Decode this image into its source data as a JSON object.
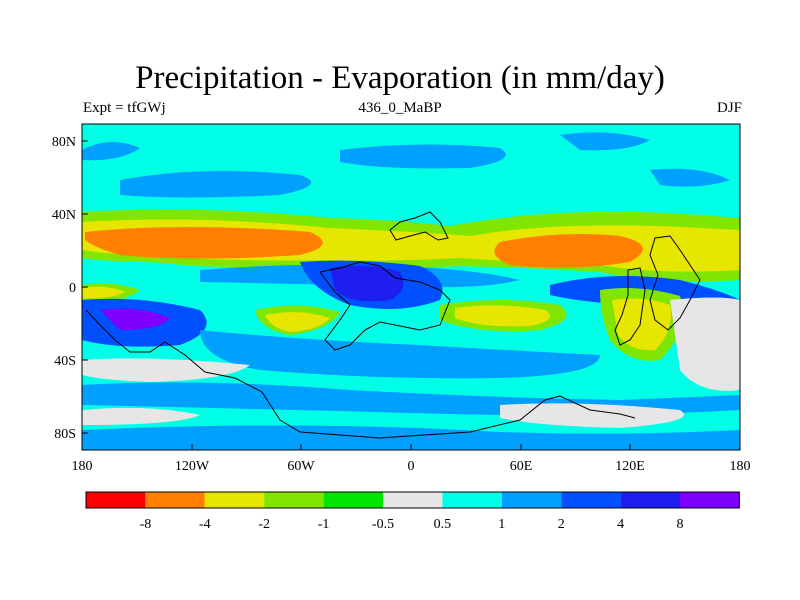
{
  "title": "Precipitation - Evaporation (in mm/day)",
  "subtitle_left": "Expt = tfGWj",
  "subtitle_center": "436_0_MaBP",
  "subtitle_right": "DJF",
  "axes": {
    "lon_ticks": [
      "180",
      "120W",
      "60W",
      "0",
      "60E",
      "120E",
      "180"
    ],
    "lat_ticks": [
      "80N",
      "40N",
      "0",
      "40S",
      "80S"
    ]
  },
  "colorbar": {
    "colors": [
      "#ff0000",
      "#ff8000",
      "#e6e600",
      "#80e600",
      "#00e600",
      "#e6e6e6",
      "#00ffe6",
      "#00a0ff",
      "#0050ff",
      "#1e1ef0",
      "#8000ff"
    ],
    "labels": [
      "-8",
      "-4",
      "-2",
      "-1",
      "-0.5",
      "0.5",
      "1",
      "2",
      "4",
      "8"
    ]
  }
}
